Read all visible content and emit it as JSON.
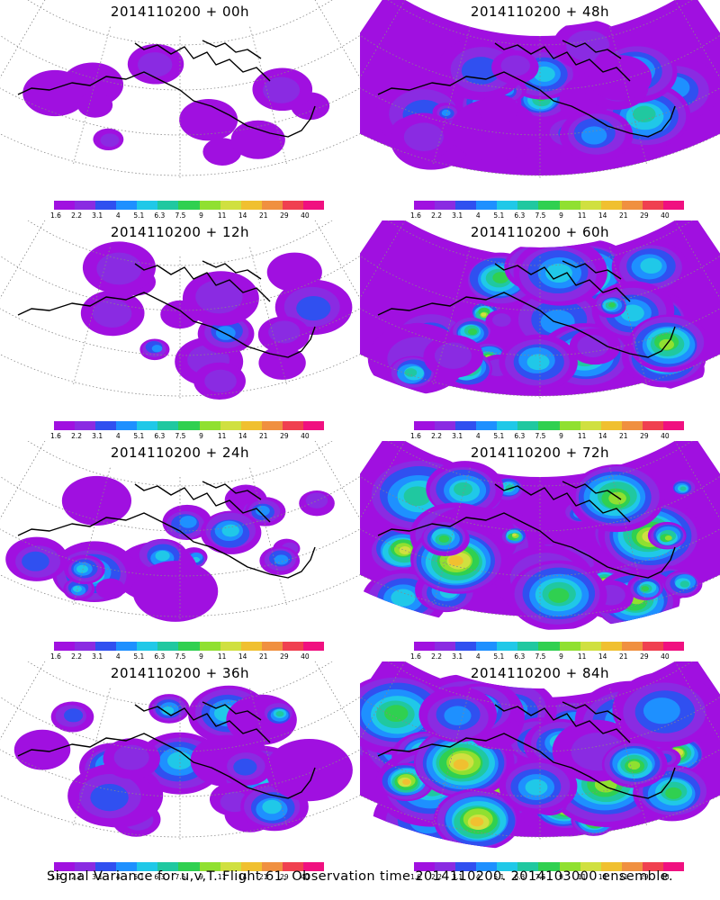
{
  "panels": [
    {
      "title": "2014110200 + 00h",
      "intensity": 0
    },
    {
      "title": "2014110200 + 48h",
      "intensity": 4
    },
    {
      "title": "2014110200 + 12h",
      "intensity": 1
    },
    {
      "title": "2014110200 + 60h",
      "intensity": 5
    },
    {
      "title": "2014110200 + 24h",
      "intensity": 2
    },
    {
      "title": "2014110200 + 72h",
      "intensity": 6
    },
    {
      "title": "2014110200 + 36h",
      "intensity": 3
    },
    {
      "title": "2014110200 + 84h",
      "intensity": 7
    }
  ],
  "colorbar": {
    "labels": [
      "1.6",
      "2.2",
      "3.1",
      "4",
      "5.1",
      "6.3",
      "7.5",
      "9",
      "11",
      "14",
      "21",
      "29",
      "40"
    ],
    "colors": [
      "#a010e0",
      "#8a2be2",
      "#3050f0",
      "#1e90ff",
      "#20c8e8",
      "#20c8a0",
      "#30d050",
      "#90e030",
      "#d0e040",
      "#f0c030",
      "#f09040",
      "#f04050",
      "#f01080"
    ]
  },
  "caption": "Signal Variance for u,v,T. Flight 61. Observation time 2014110200. 2014103000 ensemble."
}
